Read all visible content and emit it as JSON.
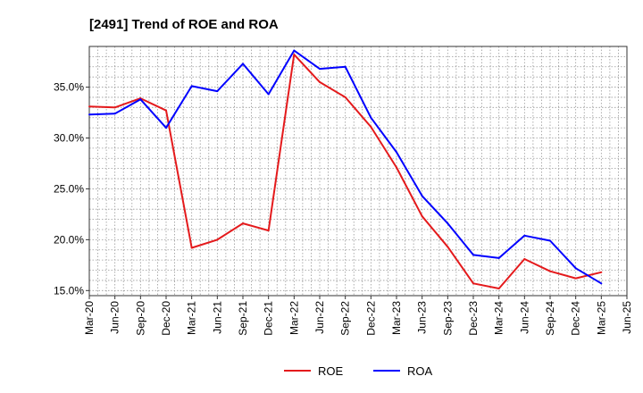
{
  "chart_data": {
    "type": "line",
    "title": "[2491]  Trend of ROE and ROA",
    "xlabel": "",
    "ylabel": "",
    "categories": [
      "Mar-20",
      "Jun-20",
      "Sep-20",
      "Dec-20",
      "Mar-21",
      "Jun-21",
      "Sep-21",
      "Dec-21",
      "Mar-22",
      "Jun-22",
      "Sep-22",
      "Dec-22",
      "Mar-23",
      "Jun-23",
      "Sep-23",
      "Dec-23",
      "Mar-24",
      "Jun-24",
      "Sep-24",
      "Dec-24",
      "Mar-25",
      "Jun-25"
    ],
    "x_tick_labels": [
      "Mar-20",
      "Jun-20",
      "Sep-20",
      "Dec-20",
      "Mar-21",
      "Jun-21",
      "Sep-21",
      "Dec-21",
      "Mar-22",
      "Jun-22",
      "Sep-22",
      "Dec-22",
      "Mar-23",
      "Jun-23",
      "Sep-23",
      "Dec-23",
      "Mar-24",
      "Jun-24",
      "Sep-24",
      "Dec-24",
      "Mar-25",
      "Jun-25"
    ],
    "ylim": [
      14.5,
      39.0
    ],
    "y_ticks": [
      15.0,
      20.0,
      25.0,
      30.0,
      35.0
    ],
    "y_tick_labels": [
      "15.0%",
      "20.0%",
      "25.0%",
      "30.0%",
      "35.0%"
    ],
    "grid": true,
    "legend_position": "bottom",
    "series": [
      {
        "name": "ROE",
        "color": "#e41a1c",
        "values": [
          33.1,
          33.0,
          33.9,
          32.7,
          19.2,
          20.0,
          21.6,
          20.9,
          38.2,
          35.5,
          34.0,
          31.1,
          27.1,
          22.3,
          19.3,
          15.7,
          15.2,
          18.1,
          16.9,
          16.2,
          16.8,
          null
        ]
      },
      {
        "name": "ROA",
        "color": "#0000ff",
        "values": [
          32.3,
          32.4,
          33.8,
          31.0,
          35.1,
          34.6,
          37.3,
          34.3,
          38.6,
          36.8,
          37.0,
          32.0,
          28.6,
          24.3,
          21.6,
          18.5,
          18.2,
          20.4,
          19.9,
          17.2,
          15.7,
          null
        ]
      }
    ]
  }
}
